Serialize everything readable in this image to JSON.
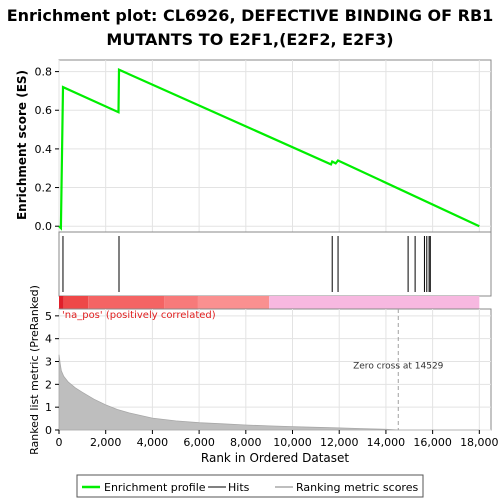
{
  "chart_data": {
    "type": "line",
    "title_line1": "Enrichment plot: CL6926, DEFECTIVE BINDING OF RB1",
    "title_line2": "MUTANTS TO E2F1,(E2F2, E2F3)",
    "es_ylabel": "Enrichment score (ES)",
    "metric_ylabel": "Ranked list metric (PreRanked)",
    "xlabel": "Rank in Ordered Dataset",
    "x_ticks": [
      "0",
      "2,000",
      "4,000",
      "6,000",
      "8,000",
      "10,000",
      "12,000",
      "14,000",
      "16,000",
      "18,000"
    ],
    "x_tick_values": [
      0,
      2000,
      4000,
      6000,
      8000,
      10000,
      12000,
      14000,
      16000,
      18000
    ],
    "xlim": [
      0,
      18500
    ],
    "es_ticks": [
      "0.0",
      "0.2",
      "0.4",
      "0.6",
      "0.8"
    ],
    "es_tick_values": [
      0.0,
      0.2,
      0.4,
      0.6,
      0.8
    ],
    "es_ylim": [
      -0.03,
      0.86
    ],
    "metric_ticks": [
      "0",
      "1",
      "2",
      "3",
      "4",
      "5"
    ],
    "metric_tick_values": [
      0,
      1,
      2,
      3,
      4,
      5
    ],
    "metric_ylim": [
      0,
      5.3
    ],
    "enrichment_profile": {
      "x": [
        0,
        80,
        170,
        2550,
        2570,
        11650,
        11700,
        11850,
        11950,
        18000
      ],
      "y": [
        0.0,
        -0.01,
        0.72,
        0.59,
        0.81,
        0.32,
        0.335,
        0.325,
        0.34,
        0.0
      ]
    },
    "hits": [
      170,
      2570,
      11700,
      11950,
      14950,
      15250,
      15650,
      15750,
      15850,
      15900
    ],
    "color_bands": [
      {
        "from": 0,
        "to": 200,
        "color": "#e0202a"
      },
      {
        "from": 200,
        "to": 1250,
        "color": "#ee4848"
      },
      {
        "from": 1250,
        "to": 4500,
        "color": "#f46464"
      },
      {
        "from": 4500,
        "to": 5950,
        "color": "#f77a7a"
      },
      {
        "from": 5950,
        "to": 9000,
        "color": "#fa9090"
      },
      {
        "from": 9000,
        "to": 18000,
        "color": "#f7b8e0"
      }
    ],
    "metric_curve": {
      "x": [
        0,
        50,
        100,
        200,
        400,
        700,
        1000,
        1500,
        2000,
        2500,
        3000,
        4000,
        5000,
        6000,
        7000,
        8000,
        9000,
        10000,
        11000,
        12000,
        13000,
        14000,
        14529,
        15000,
        16000,
        17000,
        18000
      ],
      "y": [
        3.3,
        2.9,
        2.6,
        2.35,
        2.1,
        1.85,
        1.65,
        1.35,
        1.1,
        0.9,
        0.75,
        0.52,
        0.4,
        0.32,
        0.27,
        0.22,
        0.18,
        0.15,
        0.12,
        0.09,
        0.06,
        0.03,
        0.0,
        0.0,
        0.0,
        0.0,
        0.0
      ]
    },
    "zero_cross": 14529,
    "pos_label": "'na_pos' (positively correlated)",
    "zero_cross_label": "Zero cross at 14529",
    "legend": [
      "Enrichment profile",
      "Hits",
      "Ranking metric scores"
    ],
    "colors": {
      "enrichment": "#00ee00",
      "hits": "#000000",
      "metric": "#bebebe",
      "pos_label": "#e02020",
      "zero_line": "#a0a0a0"
    }
  }
}
